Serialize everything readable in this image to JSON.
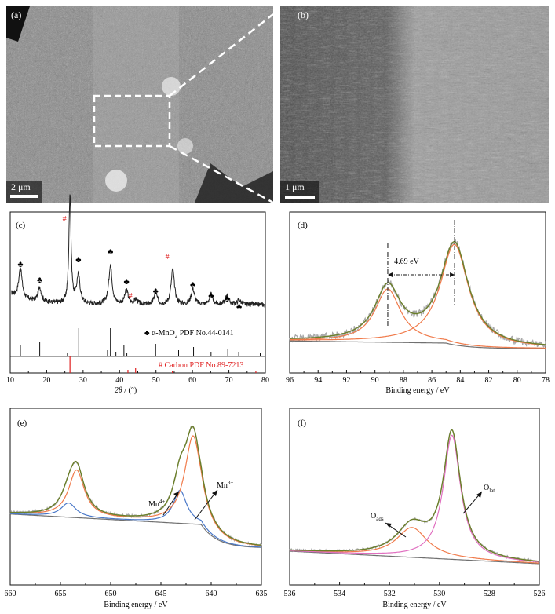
{
  "figure": {
    "panels": {
      "a": {
        "label": "(a)",
        "scale_bar": "2 μm"
      },
      "b": {
        "label": "(b)",
        "scale_bar": "1 μm"
      },
      "c": {
        "label": "(c)",
        "xlabel_italic": "2θ",
        "xlabel_rest": " / (°)",
        "ref1_symbol": "♣",
        "ref1_text": "α-MnO",
        "ref1_sub": "2",
        "ref1_rest": " PDF No.44-0141",
        "ref2_text": "# Carbon PDF No.89-7213",
        "hash": "#",
        "club": "♣"
      },
      "d": {
        "label": "(d)",
        "xlabel": "Binding energy / eV",
        "annotation": "4.69 eV"
      },
      "e": {
        "label": "(e)",
        "xlabel": "Binding energy / eV",
        "mn4": "Mn",
        "mn4_sup": "4+",
        "mn3": "Mn",
        "mn3_sup": "3+"
      },
      "f": {
        "label": "(f)",
        "xlabel": "Binding energy / eV",
        "oads": "O",
        "oads_sub": "ads",
        "olat": "O",
        "olat_sub": "lat"
      }
    }
  },
  "colors": {
    "raw": "#a8a8a8",
    "envelope": "#6b7f2a",
    "fit": "#f07a4a",
    "background": "#707070",
    "blue": "#4a78c8",
    "pink": "#e070c0",
    "red": "#e02020"
  },
  "chart_data": [
    {
      "panel": "c",
      "type": "line",
      "xlim": [
        10,
        80
      ],
      "xticks": [
        10,
        20,
        30,
        40,
        50,
        60,
        70,
        80
      ],
      "series": [
        {
          "peaks_2theta": [
            12.8,
            18.1,
            26.4,
            28.7,
            37.5,
            41.9,
            44.5,
            49.9,
            54.6,
            60.1,
            65.1,
            69.5,
            72.8
          ]
        }
      ],
      "mno2_reference_lines": [
        12.8,
        18.1,
        25.7,
        28.8,
        36.7,
        37.5,
        39.0,
        41.2,
        42.0,
        49.9,
        56.2,
        60.3,
        65.1,
        69.7,
        72.7,
        78.6
      ],
      "carbon_reference_lines": [
        26.4,
        42.3,
        44.4,
        54.5,
        77.4
      ]
    },
    {
      "panel": "d",
      "type": "line",
      "xlim": [
        96,
        78
      ],
      "xticks": [
        96,
        94,
        92,
        90,
        88,
        86,
        84,
        82,
        80,
        78
      ],
      "peaks_eV": [
        89.1,
        84.4
      ],
      "splitting_eV": 4.69
    },
    {
      "panel": "e",
      "type": "line",
      "xlim": [
        660,
        635
      ],
      "xticks": [
        660,
        655,
        650,
        645,
        640,
        635
      ],
      "peaks_eV": [
        654.2,
        653.4,
        643.1,
        641.8
      ]
    },
    {
      "panel": "f",
      "type": "line",
      "xlim": [
        536,
        526
      ],
      "xticks": [
        536,
        534,
        532,
        530,
        528,
        526
      ],
      "peaks_eV": [
        531.1,
        529.5
      ]
    }
  ]
}
